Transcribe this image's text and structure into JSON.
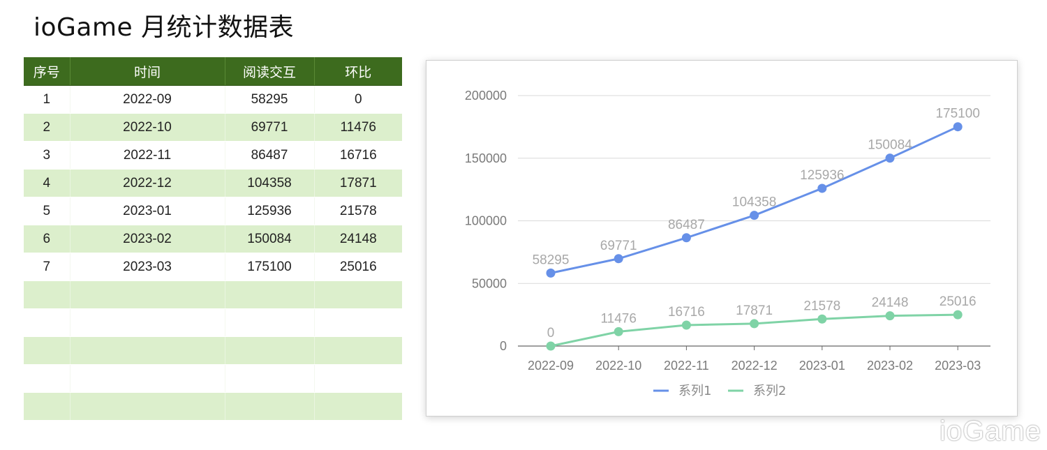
{
  "page": {
    "title": "ioGame 月统计数据表",
    "watermark": "ioGame"
  },
  "table": {
    "headers": [
      "序号",
      "时间",
      "阅读交互",
      "环比"
    ],
    "rows": [
      [
        "1",
        "2022-09",
        "58295",
        "0"
      ],
      [
        "2",
        "2022-10",
        "69771",
        "11476"
      ],
      [
        "3",
        "2022-11",
        "86487",
        "16716"
      ],
      [
        "4",
        "2022-12",
        "104358",
        "17871"
      ],
      [
        "5",
        "2023-01",
        "125936",
        "21578"
      ],
      [
        "6",
        "2023-02",
        "150084",
        "24148"
      ],
      [
        "7",
        "2023-03",
        "175100",
        "25016"
      ],
      [
        "",
        "",
        "",
        ""
      ],
      [
        "",
        "",
        "",
        ""
      ],
      [
        "",
        "",
        "",
        ""
      ],
      [
        "",
        "",
        "",
        ""
      ],
      [
        "",
        "",
        "",
        ""
      ]
    ],
    "colors": {
      "header_bg": "#3d6b1e",
      "stripe": "#dcefcc"
    }
  },
  "chart_data": {
    "type": "line",
    "categories": [
      "2022-09",
      "2022-10",
      "2022-11",
      "2022-12",
      "2023-01",
      "2023-02",
      "2023-03"
    ],
    "series": [
      {
        "name": "系列1",
        "color": "#6690e8",
        "values": [
          58295,
          69771,
          86487,
          104358,
          125936,
          150084,
          175100
        ]
      },
      {
        "name": "系列2",
        "color": "#7fd3a6",
        "values": [
          0,
          11476,
          16716,
          17871,
          21578,
          24148,
          25016
        ]
      }
    ],
    "y_ticks": [
      "0",
      "50000",
      "100000",
      "150000",
      "200000"
    ],
    "ylim": [
      0,
      200000
    ],
    "data_labels": true,
    "grid": true,
    "legend": "bottom-center"
  }
}
